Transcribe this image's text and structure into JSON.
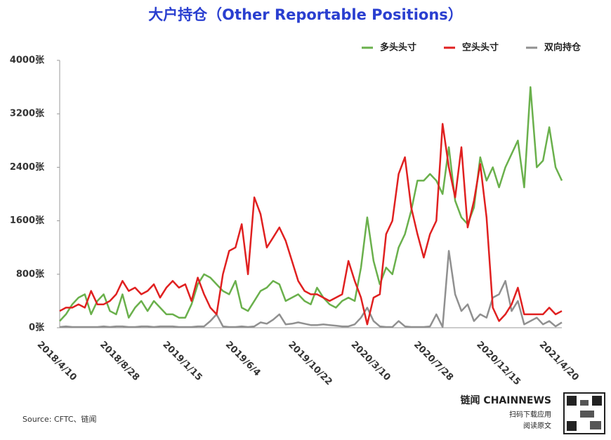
{
  "chart_data": {
    "type": "line",
    "title": "大户持仓（Other Reportable Positions）",
    "source": "Source: CFTC、链闻",
    "brand": {
      "name": "链闻 CHAINNEWS",
      "line1": "扫码下载应用",
      "line2": "阅读原文"
    },
    "legend": "top-right",
    "grid": false,
    "categories": [
      "2018/4/10",
      null,
      null,
      null,
      null,
      null,
      null,
      null,
      null,
      null,
      "2018/8/28",
      null,
      null,
      null,
      null,
      null,
      null,
      null,
      null,
      null,
      "2019/1/15",
      null,
      null,
      null,
      null,
      null,
      null,
      null,
      null,
      null,
      "2019/6/4",
      null,
      null,
      null,
      null,
      null,
      null,
      null,
      null,
      null,
      "2019/10/22",
      null,
      null,
      null,
      null,
      null,
      null,
      null,
      null,
      null,
      "2020/3/10",
      null,
      null,
      null,
      null,
      null,
      null,
      null,
      null,
      null,
      "2020/7/28",
      null,
      null,
      null,
      null,
      null,
      null,
      null,
      null,
      null,
      "2020/12/15",
      null,
      null,
      null,
      null,
      null,
      null,
      null,
      null,
      null,
      "2021/4/20"
    ],
    "ylim": [
      0,
      4000
    ],
    "yticks": [
      {
        "value": 0,
        "label": "0张"
      },
      {
        "value": 800,
        "label": "800张"
      },
      {
        "value": 1600,
        "label": "1600张"
      },
      {
        "value": 2400,
        "label": "2400张"
      },
      {
        "value": 3200,
        "label": "3200张"
      },
      {
        "value": 4000,
        "label": "4000张"
      }
    ],
    "series": [
      {
        "name": "多头头寸",
        "color": "#6ab04c",
        "values": [
          100,
          200,
          350,
          450,
          500,
          200,
          400,
          500,
          250,
          200,
          500,
          150,
          300,
          400,
          250,
          400,
          300,
          200,
          200,
          150,
          150,
          350,
          650,
          800,
          750,
          650,
          550,
          500,
          700,
          300,
          250,
          400,
          550,
          600,
          700,
          650,
          400,
          450,
          500,
          400,
          350,
          600,
          450,
          350,
          300,
          400,
          450,
          400,
          900,
          1650,
          1000,
          650,
          900,
          800,
          1200,
          1400,
          1750,
          2200,
          2200,
          2300,
          2200,
          2000,
          2700,
          1900,
          1650,
          1550,
          1800,
          2550,
          2200,
          2400,
          2100,
          2400,
          2600,
          2800,
          2100,
          3600,
          2400,
          2500,
          3000,
          2400,
          2200
        ]
      },
      {
        "name": "空头头寸",
        "color": "#e02020",
        "values": [
          250,
          300,
          300,
          350,
          300,
          550,
          350,
          350,
          400,
          500,
          700,
          550,
          600,
          500,
          550,
          650,
          450,
          600,
          700,
          600,
          650,
          400,
          750,
          500,
          300,
          200,
          800,
          1150,
          1200,
          1550,
          800,
          1950,
          1700,
          1200,
          1350,
          1500,
          1300,
          1000,
          700,
          550,
          500,
          500,
          450,
          400,
          450,
          500,
          1000,
          700,
          450,
          50,
          450,
          500,
          1400,
          1600,
          2300,
          2550,
          1800,
          1400,
          1050,
          1400,
          1600,
          3050,
          2400,
          1950,
          2700,
          1500,
          1900,
          2450,
          1650,
          300,
          100,
          200,
          350,
          600,
          200,
          200,
          200,
          200,
          300,
          200,
          250
        ]
      },
      {
        "name": "双向持仓",
        "color": "#909090",
        "values": [
          10,
          20,
          10,
          10,
          10,
          10,
          10,
          20,
          10,
          20,
          20,
          10,
          10,
          20,
          20,
          10,
          20,
          20,
          20,
          10,
          10,
          10,
          20,
          20,
          100,
          200,
          20,
          10,
          10,
          20,
          10,
          20,
          80,
          60,
          120,
          200,
          50,
          60,
          80,
          60,
          40,
          40,
          50,
          40,
          30,
          20,
          20,
          50,
          150,
          300,
          100,
          20,
          10,
          10,
          100,
          20,
          10,
          10,
          10,
          20,
          200,
          10,
          1150,
          500,
          250,
          350,
          100,
          200,
          150,
          450,
          500,
          700,
          250,
          400,
          50,
          100,
          150,
          50,
          100,
          20,
          80
        ]
      }
    ]
  }
}
